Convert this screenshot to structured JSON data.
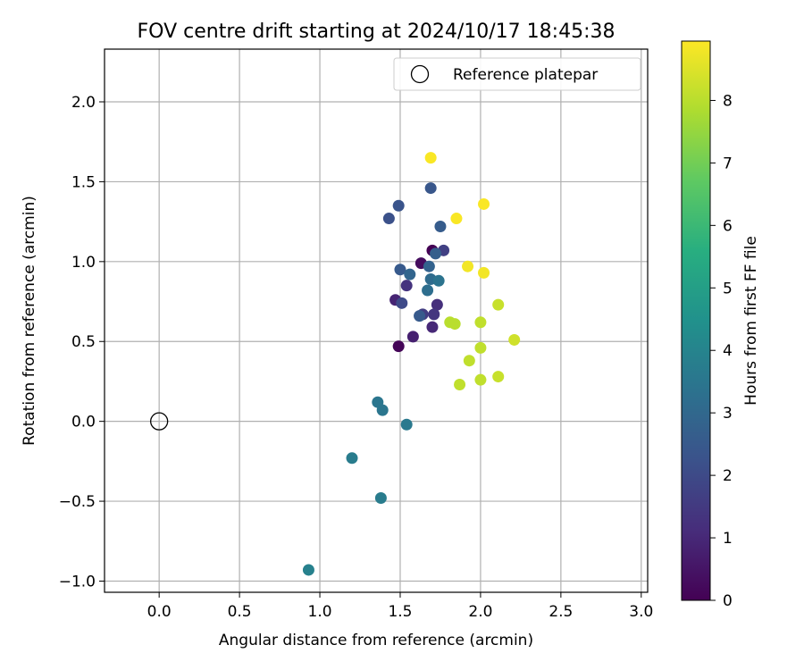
{
  "chart_data": {
    "type": "scatter",
    "title": "FOV centre drift starting at 2024/10/17 18:45:38",
    "xlabel": "Angular distance from reference (arcmin)",
    "ylabel": "Rotation from reference (arcmin)",
    "xlim": [
      -0.34,
      3.04
    ],
    "ylim": [
      -1.07,
      2.33
    ],
    "x_ticks": [
      0.0,
      0.5,
      1.0,
      1.5,
      2.0,
      2.5,
      3.0
    ],
    "x_tick_labels": [
      "0.0",
      "0.5",
      "1.0",
      "1.5",
      "2.0",
      "2.5",
      "3.0"
    ],
    "y_ticks": [
      -1.0,
      -0.5,
      0.0,
      0.5,
      1.0,
      1.5,
      2.0
    ],
    "y_tick_labels": [
      "−1.0",
      "−0.5",
      "0.0",
      "0.5",
      "1.0",
      "1.5",
      "2.0"
    ],
    "grid": true,
    "legend": {
      "placement": "top-right",
      "entries": [
        {
          "label": "Reference platepar",
          "marker": "open-circle",
          "color": "#000000"
        }
      ]
    },
    "reference_point": {
      "x": 0.0,
      "y": 0.0
    },
    "colorbar": {
      "label": "Hours from first FF file",
      "colormap": "viridis",
      "range": [
        0,
        8.95
      ],
      "ticks": [
        0,
        1,
        2,
        3,
        4,
        5,
        6,
        7,
        8
      ],
      "tick_labels": [
        "0",
        "1",
        "2",
        "3",
        "4",
        "5",
        "6",
        "7",
        "8"
      ]
    },
    "points": [
      {
        "x": 1.7,
        "y": 1.07,
        "hours": 0.0
      },
      {
        "x": 1.49,
        "y": 0.47,
        "hours": 0.1
      },
      {
        "x": 1.63,
        "y": 0.99,
        "hours": 0.3
      },
      {
        "x": 1.58,
        "y": 0.53,
        "hours": 0.8
      },
      {
        "x": 1.47,
        "y": 0.76,
        "hours": 0.9
      },
      {
        "x": 1.7,
        "y": 0.59,
        "hours": 1.0
      },
      {
        "x": 1.73,
        "y": 0.73,
        "hours": 1.2
      },
      {
        "x": 1.54,
        "y": 0.85,
        "hours": 1.3
      },
      {
        "x": 1.71,
        "y": 0.67,
        "hours": 1.4
      },
      {
        "x": 1.64,
        "y": 0.67,
        "hours": 1.6
      },
      {
        "x": 1.77,
        "y": 1.07,
        "hours": 1.7
      },
      {
        "x": 1.51,
        "y": 0.74,
        "hours": 2.0
      },
      {
        "x": 1.43,
        "y": 1.27,
        "hours": 2.2
      },
      {
        "x": 1.49,
        "y": 1.35,
        "hours": 2.3
      },
      {
        "x": 1.69,
        "y": 1.46,
        "hours": 2.4
      },
      {
        "x": 1.5,
        "y": 0.95,
        "hours": 2.5
      },
      {
        "x": 1.62,
        "y": 0.66,
        "hours": 2.5
      },
      {
        "x": 1.75,
        "y": 1.22,
        "hours": 2.6
      },
      {
        "x": 1.72,
        "y": 1.05,
        "hours": 2.7
      },
      {
        "x": 1.68,
        "y": 0.97,
        "hours": 2.8
      },
      {
        "x": 1.56,
        "y": 0.92,
        "hours": 2.9
      },
      {
        "x": 1.69,
        "y": 0.89,
        "hours": 3.1
      },
      {
        "x": 1.67,
        "y": 0.82,
        "hours": 3.2
      },
      {
        "x": 1.74,
        "y": 0.88,
        "hours": 3.4
      },
      {
        "x": 1.36,
        "y": 0.12,
        "hours": 3.5
      },
      {
        "x": 1.39,
        "y": 0.07,
        "hours": 3.5
      },
      {
        "x": 1.54,
        "y": -0.02,
        "hours": 3.6
      },
      {
        "x": 1.2,
        "y": -0.23,
        "hours": 3.7
      },
      {
        "x": 1.38,
        "y": -0.48,
        "hours": 3.7
      },
      {
        "x": 0.93,
        "y": -0.93,
        "hours": 3.9
      },
      {
        "x": 1.81,
        "y": 0.62,
        "hours": 8.0
      },
      {
        "x": 1.84,
        "y": 0.61,
        "hours": 8.0
      },
      {
        "x": 2.0,
        "y": 0.62,
        "hours": 8.1
      },
      {
        "x": 2.0,
        "y": 0.46,
        "hours": 8.1
      },
      {
        "x": 1.93,
        "y": 0.38,
        "hours": 8.1
      },
      {
        "x": 1.87,
        "y": 0.23,
        "hours": 8.1
      },
      {
        "x": 2.0,
        "y": 0.26,
        "hours": 8.1
      },
      {
        "x": 2.11,
        "y": 0.28,
        "hours": 8.2
      },
      {
        "x": 2.11,
        "y": 0.73,
        "hours": 8.2
      },
      {
        "x": 2.21,
        "y": 0.51,
        "hours": 8.3
      },
      {
        "x": 1.92,
        "y": 0.97,
        "hours": 8.8
      },
      {
        "x": 2.02,
        "y": 0.93,
        "hours": 8.8
      },
      {
        "x": 1.85,
        "y": 1.27,
        "hours": 8.9
      },
      {
        "x": 2.02,
        "y": 1.36,
        "hours": 8.9
      },
      {
        "x": 1.69,
        "y": 1.65,
        "hours": 8.9
      }
    ]
  }
}
